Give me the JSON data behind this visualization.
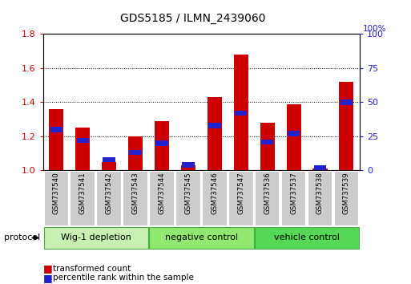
{
  "title": "GDS5185 / ILMN_2439060",
  "samples": [
    "GSM737540",
    "GSM737541",
    "GSM737542",
    "GSM737543",
    "GSM737544",
    "GSM737545",
    "GSM737546",
    "GSM737547",
    "GSM737536",
    "GSM737537",
    "GSM737538",
    "GSM737539"
  ],
  "transformed_count": [
    1.36,
    1.25,
    1.05,
    1.2,
    1.29,
    1.03,
    1.43,
    1.68,
    1.28,
    1.39,
    1.01,
    1.52
  ],
  "percentile_rank_pct": [
    30,
    22,
    8,
    13,
    20,
    4,
    33,
    42,
    21,
    27,
    2,
    50
  ],
  "groups": [
    {
      "label": "Wig-1 depletion",
      "indices": [
        0,
        1,
        2,
        3
      ],
      "color": "#c8f0b0"
    },
    {
      "label": "negative control",
      "indices": [
        4,
        5,
        6,
        7
      ],
      "color": "#90e870"
    },
    {
      "label": "vehicle control",
      "indices": [
        8,
        9,
        10,
        11
      ],
      "color": "#55d855"
    }
  ],
  "bar_color_red": "#cc0000",
  "bar_color_blue": "#2222cc",
  "ylim_left": [
    1.0,
    1.8
  ],
  "ylim_right": [
    0,
    100
  ],
  "yticks_left": [
    1.0,
    1.2,
    1.4,
    1.6,
    1.8
  ],
  "yticks_right": [
    0,
    25,
    50,
    75,
    100
  ],
  "bar_width": 0.55,
  "protocol_label": "protocol"
}
